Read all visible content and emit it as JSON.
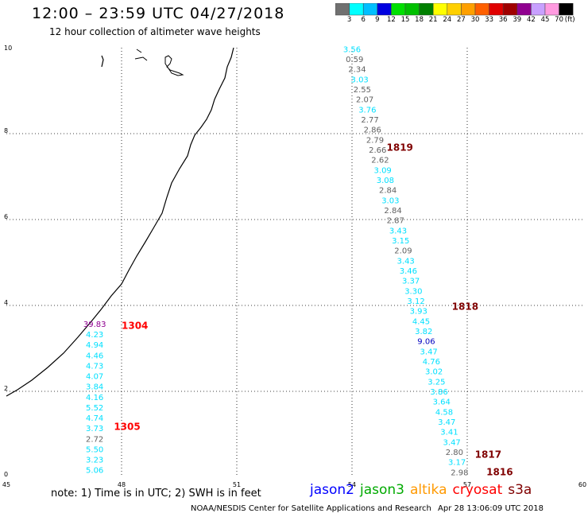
{
  "title": "12:00  –  23:59  UTC  04/27/2018",
  "subtitle": "12 hour collection of altimeter wave heights",
  "note": "note:  1) Time is in UTC;  2) SWH is in feet",
  "credit": "NOAA/NESDIS Center for Satellite Applications and Research",
  "timestamp": "Apr 28 13:06:09 UTC 2018",
  "colorbar": {
    "unit": "(ft)",
    "thresholds": [
      "3",
      "6",
      "9",
      "12",
      "15",
      "18",
      "21",
      "24",
      "27",
      "30",
      "33",
      "36",
      "39",
      "42",
      "45",
      "70"
    ],
    "colors": [
      "#707070",
      "#00ffff",
      "#00bfff",
      "#0000e0",
      "#00e000",
      "#00c000",
      "#008000",
      "#ffff00",
      "#ffd000",
      "#ffa000",
      "#ff6000",
      "#e00000",
      "#a00000",
      "#900090",
      "#c8a0ff",
      "#ff9ae0",
      "#000000"
    ]
  },
  "satellites": [
    {
      "name": "jason2",
      "color": "#0000ff"
    },
    {
      "name": "jason3",
      "color": "#00aa00"
    },
    {
      "name": "altika",
      "color": "#ff9900"
    },
    {
      "name": "cryosat",
      "color": "#ff0000"
    },
    {
      "name": "s3a",
      "color": "#800000"
    }
  ],
  "map": {
    "x_ticks": [
      "45",
      "48",
      "51",
      "54",
      "57",
      "60"
    ],
    "y_ticks": [
      "0",
      "2",
      "4",
      "6",
      "8",
      "10"
    ],
    "lon_range": [
      45,
      60
    ],
    "lat_range": [
      0,
      10
    ],
    "pass_times": [
      {
        "label": "1819",
        "color": "#800000",
        "lon": 54.9,
        "lat": 7.6
      },
      {
        "label": "1818",
        "color": "#800000",
        "lon": 56.6,
        "lat": 3.9
      },
      {
        "label": "1817",
        "color": "#800000",
        "lon": 57.2,
        "lat": 0.45
      },
      {
        "label": "1816",
        "color": "#800000",
        "lon": 57.5,
        "lat": 0.05
      },
      {
        "label": "1304",
        "color": "#ff0000",
        "lon": 48.0,
        "lat": 3.45
      },
      {
        "label": "1305",
        "color": "#ff0000",
        "lon": 47.8,
        "lat": 1.1
      }
    ],
    "tracks": [
      {
        "name": "track-east",
        "lon_start": 54.0,
        "lon_end": 56.8,
        "lat_start": 9.9,
        "lat_end": 0.05,
        "values": [
          "3.56",
          "0.59",
          "2.34",
          "3.03",
          "2.55",
          "2.07",
          "3.76",
          "2.77",
          "2.86",
          "2.79",
          "2.66",
          "2.62",
          "3.09",
          "3.08",
          "2.84",
          "3.03",
          "2.84",
          "2.87",
          "3.43",
          "3.15",
          "2.09",
          "3.43",
          "3.46",
          "3.37",
          "3.30",
          "3.12",
          "3.93",
          "4.45",
          "3.82",
          "9.06",
          "3.47",
          "4.76",
          "3.02",
          "3.25",
          "3.86",
          "3.64",
          "4.58",
          "3.47",
          "3.41",
          "3.47",
          "2.80",
          "3.17",
          "2.98"
        ],
        "colors": [
          "#00e0ff",
          "#606060",
          "#606060",
          "#00e0ff",
          "#606060",
          "#606060",
          "#00e0ff",
          "#606060",
          "#606060",
          "#606060",
          "#606060",
          "#606060",
          "#00e0ff",
          "#00e0ff",
          "#606060",
          "#00e0ff",
          "#606060",
          "#606060",
          "#00e0ff",
          "#00e0ff",
          "#606060",
          "#00e0ff",
          "#00e0ff",
          "#00e0ff",
          "#00e0ff",
          "#00e0ff",
          "#00e0ff",
          "#00e0ff",
          "#00e0ff",
          "#0000c0",
          "#00e0ff",
          "#00e0ff",
          "#00e0ff",
          "#00e0ff",
          "#00e0ff",
          "#00e0ff",
          "#00e0ff",
          "#00e0ff",
          "#00e0ff",
          "#00e0ff",
          "#606060",
          "#00e0ff",
          "#606060"
        ]
      },
      {
        "name": "track-west",
        "lon_start": 47.3,
        "lon_end": 47.3,
        "lat_start": 3.5,
        "lat_end": 0.1,
        "values": [
          "39.83",
          "4.23",
          "4.94",
          "4.46",
          "4.73",
          "4.07",
          "3.84",
          "4.16",
          "5.52",
          "4.74",
          "3.73",
          "2.72",
          "5.50",
          "3.23",
          "5.06"
        ],
        "colors": [
          "#900090",
          "#00e0ff",
          "#00e0ff",
          "#00e0ff",
          "#00e0ff",
          "#00e0ff",
          "#00e0ff",
          "#00e0ff",
          "#00e0ff",
          "#00e0ff",
          "#00e0ff",
          "#606060",
          "#00e0ff",
          "#00e0ff",
          "#00e0ff"
        ]
      }
    ]
  }
}
